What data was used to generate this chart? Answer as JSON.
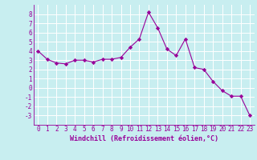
{
  "xlabel": "Windchill (Refroidissement éolien,°C)",
  "x_values": [
    0,
    1,
    2,
    3,
    4,
    5,
    6,
    7,
    8,
    9,
    10,
    11,
    12,
    13,
    14,
    15,
    16,
    17,
    18,
    19,
    20,
    21,
    22,
    23
  ],
  "y_values": [
    4.0,
    3.1,
    2.7,
    2.6,
    3.0,
    3.0,
    2.8,
    3.1,
    3.1,
    3.3,
    4.4,
    5.3,
    8.2,
    6.5,
    4.2,
    3.5,
    5.3,
    2.2,
    2.0,
    0.7,
    -0.3,
    -0.9,
    -0.9,
    -3.0
  ],
  "line_color": "#990099",
  "marker": "D",
  "marker_size": 2.2,
  "bg_color": "#c8eef0",
  "grid_color": "#ffffff",
  "ylim": [
    -4,
    9
  ],
  "xlim": [
    -0.5,
    23.5
  ],
  "yticks": [
    -3,
    -2,
    -1,
    0,
    1,
    2,
    3,
    4,
    5,
    6,
    7,
    8
  ],
  "xticks": [
    0,
    1,
    2,
    3,
    4,
    5,
    6,
    7,
    8,
    9,
    10,
    11,
    12,
    13,
    14,
    15,
    16,
    17,
    18,
    19,
    20,
    21,
    22,
    23
  ],
  "tick_color": "#990099",
  "label_color": "#990099",
  "label_fontsize": 6.0,
  "tick_fontsize": 5.5
}
